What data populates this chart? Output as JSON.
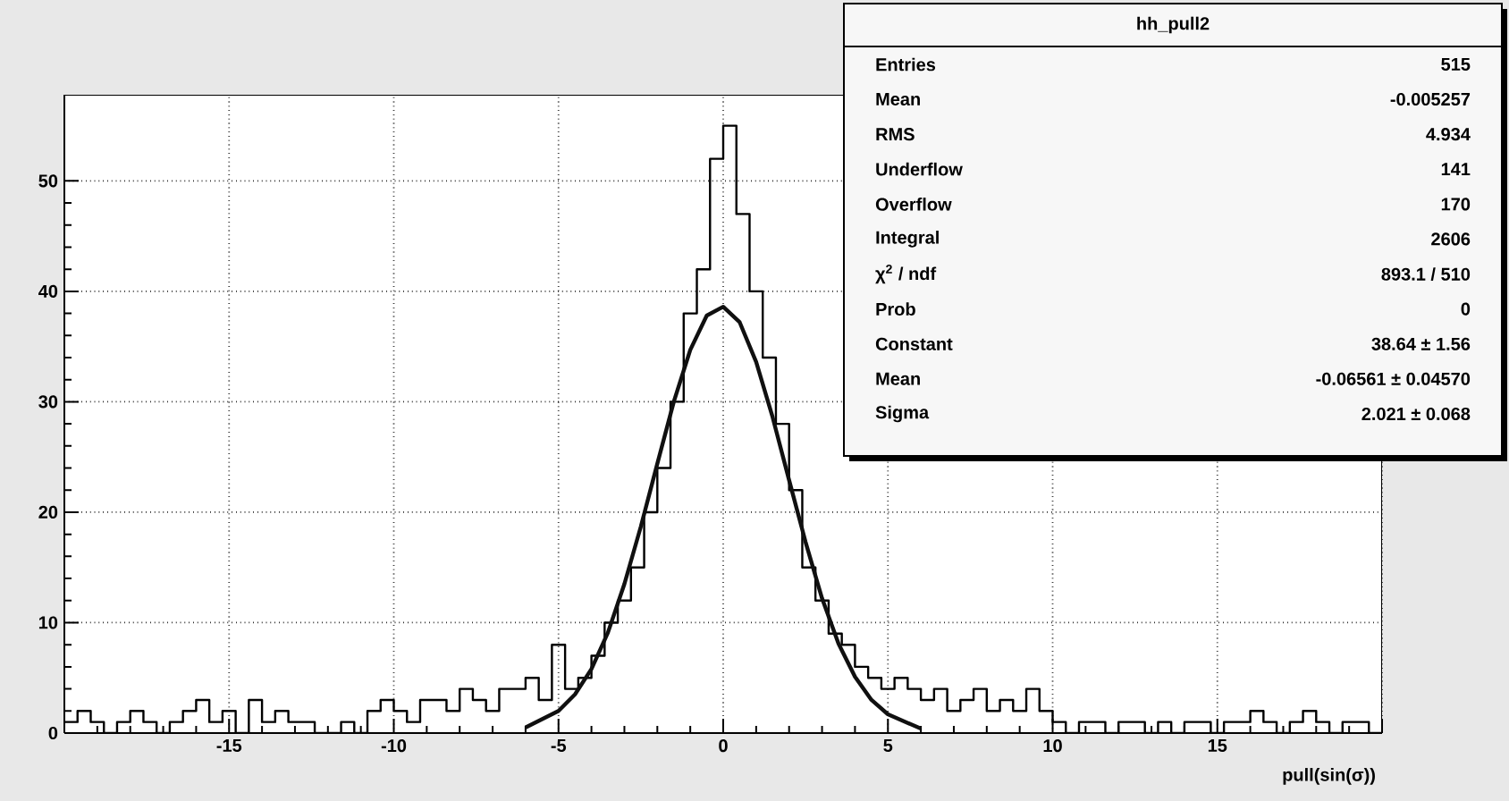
{
  "chart_data": {
    "type": "histogram",
    "title": "hh_pull2",
    "xlabel": "pull(sin(σ))",
    "series": [
      {
        "type": "histogram",
        "color": "#000000",
        "bins": [
          -20,
          -19.6,
          -19.2,
          -18.8,
          -18.4,
          -18,
          -17.6,
          -17.2,
          -16.8,
          -16.4,
          -16,
          -15.6,
          -15.2,
          -14.8,
          -14.4,
          -14,
          -13.6,
          -13.2,
          -12.8,
          -12.4,
          -12,
          -11.6,
          -11.2,
          -10.8,
          -10.4,
          -10,
          -9.6,
          -9.2,
          -8.8,
          -8.4,
          -8,
          -7.6,
          -7.2,
          -6.8,
          -6.4,
          -6,
          -5.6,
          -5.2,
          -4.8,
          -4.4,
          -4,
          -3.6,
          -3.2,
          -2.8,
          -2.4,
          -2,
          -1.6,
          -1.2,
          -0.8,
          -0.4,
          0,
          0.4,
          0.8,
          1.2,
          1.6,
          2,
          2.4,
          2.8,
          3.2,
          3.6,
          4,
          4.4,
          4.8,
          5.2,
          5.6,
          6,
          6.4,
          6.8,
          7.2,
          7.6,
          8,
          8.4,
          8.8,
          9.2,
          9.6,
          10,
          10.4,
          10.8,
          11.2,
          11.6,
          12,
          12.4,
          12.8,
          13.2,
          13.6,
          14,
          14.4,
          14.8,
          15.2,
          15.6,
          16,
          16.4,
          16.8,
          17.2,
          17.6,
          18,
          18.4,
          18.8,
          19.2,
          19.6,
          20
        ],
        "values": [
          1,
          2,
          1,
          0,
          1,
          2,
          1,
          0,
          1,
          2,
          3,
          1,
          2,
          0,
          3,
          1,
          2,
          1,
          1,
          0,
          0,
          1,
          0,
          2,
          3,
          2,
          1,
          3,
          3,
          2,
          4,
          3,
          2,
          4,
          4,
          5,
          3,
          8,
          4,
          5,
          7,
          10,
          12,
          15,
          20,
          24,
          30,
          38,
          42,
          52,
          55,
          47,
          40,
          34,
          28,
          22,
          15,
          12,
          9,
          8,
          6,
          5,
          4,
          5,
          4,
          3,
          4,
          2,
          3,
          4,
          2,
          3,
          2,
          4,
          2,
          1,
          0,
          1,
          1,
          0,
          1,
          1,
          0,
          1,
          0,
          1,
          1,
          0,
          1,
          1,
          2,
          1,
          0,
          1,
          2,
          1,
          0,
          1,
          1,
          0
        ]
      },
      {
        "type": "line",
        "color": "#101010",
        "x": [
          -6,
          -5,
          -4.5,
          -4,
          -3.5,
          -3,
          -2.5,
          -2,
          -1.5,
          -1,
          -0.5,
          0,
          0.5,
          1,
          1.5,
          2,
          2.5,
          3,
          3.5,
          4,
          4.5,
          5,
          6
        ],
        "values": [
          0.5,
          2.0,
          3.5,
          5.8,
          9.1,
          13.5,
          18.7,
          24.4,
          30.0,
          34.7,
          37.8,
          38.6,
          37.2,
          33.6,
          28.6,
          22.9,
          17.3,
          12.2,
          8.1,
          5.1,
          3.0,
          1.7,
          0.4
        ]
      }
    ],
    "xlim": [
      -20,
      20
    ],
    "ylim": [
      0,
      57.8
    ],
    "xticks": [
      {
        "value": -20,
        "label": null
      },
      -15,
      -10,
      -5,
      0,
      5,
      10,
      15,
      {
        "value": 20,
        "label": null
      }
    ],
    "yticks": [
      0,
      10,
      20,
      30,
      40,
      50
    ],
    "grid": true,
    "annotations": [
      "Entries",
      "515",
      "Mean",
      "-0.005257",
      "RMS",
      "4.934",
      "Underflow",
      "141",
      "Overflow",
      "170",
      "Integral",
      "2606",
      "χ$^{2}$ / ndf",
      "893.1 / 510",
      "Prob",
      "0",
      "Constant",
      "38.64 ± 1.56",
      "Mean",
      "-0.06561 ± 0.04570",
      "Sigma",
      "2.021 ± 0.068"
    ]
  }
}
